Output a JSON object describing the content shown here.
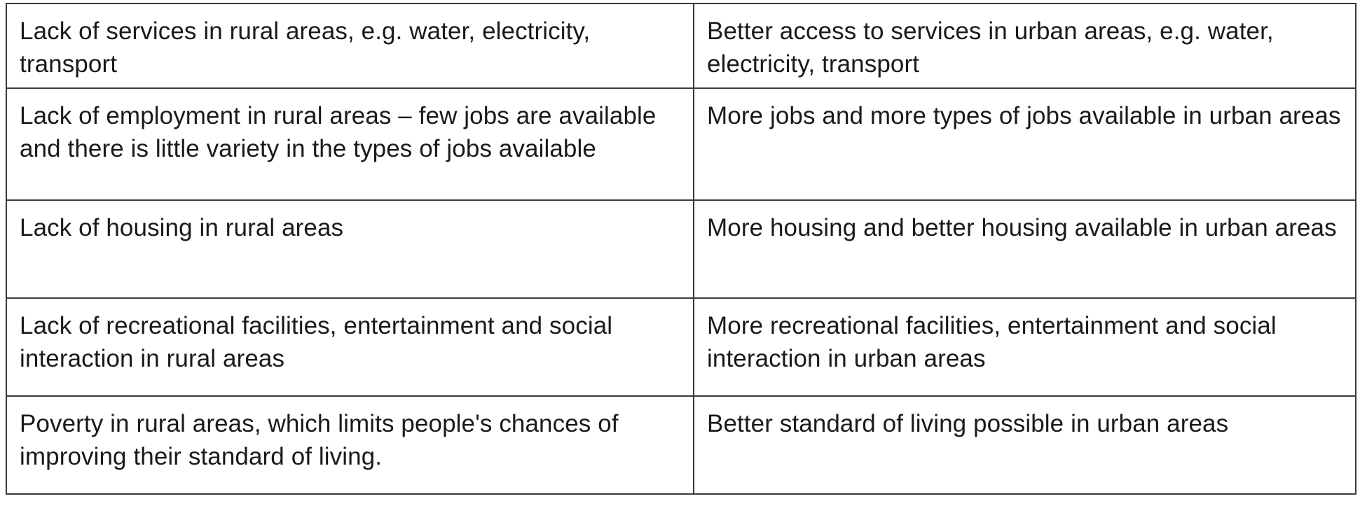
{
  "table": {
    "rows": [
      {
        "left": "Lack of services in rural areas, e.g. water, electricity, transport",
        "right": "Better access to services in urban areas, e.g. water, electricity, transport"
      },
      {
        "left": "Lack of employment in rural areas – few jobs are available and there is little variety in the types of jobs available",
        "right": "More jobs and more types of jobs available in urban areas"
      },
      {
        "left": "Lack of housing in rural areas",
        "right": "More housing and better housing available in urban areas"
      },
      {
        "left": "Lack of recreational facilities, entertainment and social interaction in rural areas",
        "right": "More recreational facilities, entertainment and social interaction in urban areas"
      },
      {
        "left": "Poverty in rural areas, which limits people's chances of improving their standard of living.",
        "right": "Better standard of living possible in urban areas"
      }
    ]
  }
}
